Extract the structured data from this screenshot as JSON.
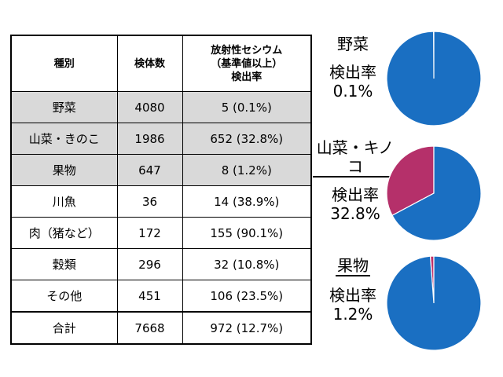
{
  "table": {
    "headers": {
      "category": "種別",
      "count": "検体数",
      "rate_line1": "放射性セシウム",
      "rate_line2": "（基準値以上）",
      "rate_line3": "検出率"
    },
    "rows": [
      {
        "category": "野菜",
        "count": "4080",
        "result": "5 (0.1%)",
        "shaded": true
      },
      {
        "category": "山菜・きのこ",
        "count": "1986",
        "result": "652 (32.8%)",
        "shaded": true
      },
      {
        "category": "果物",
        "count": "647",
        "result": "8 (1.2%)",
        "shaded": true
      },
      {
        "category": "川魚",
        "count": "36",
        "result": "14 (38.9%)",
        "shaded": false
      },
      {
        "category": "肉（猪など）",
        "count": "172",
        "result": "155 (90.1%)",
        "shaded": false
      },
      {
        "category": "穀類",
        "count": "296",
        "result": "32 (10.8%)",
        "shaded": false
      },
      {
        "category": "その他",
        "count": "451",
        "result": "106 (23.5%)",
        "shaded": false
      }
    ],
    "total": {
      "category": "合計",
      "count": "7668",
      "result": "972 (12.7%)"
    }
  },
  "chart_data": [
    {
      "type": "pie",
      "title": "野菜",
      "rate_label": "検出率",
      "rate_text": "0.1%",
      "slices": [
        {
          "value": 0.1,
          "color": "#c0306a"
        },
        {
          "value": 99.9,
          "color": "#1a6fc2"
        }
      ]
    },
    {
      "type": "pie",
      "title": "山菜・キノコ",
      "rate_label": "検出率",
      "rate_text": "32.8%",
      "slices": [
        {
          "value": 32.8,
          "color": "#b5306a"
        },
        {
          "value": 67.2,
          "color": "#1a6fc2"
        }
      ]
    },
    {
      "type": "pie",
      "title": "果物",
      "rate_label": "検出率",
      "rate_text": "1.2%",
      "slices": [
        {
          "value": 1.2,
          "color": "#c0306a"
        },
        {
          "value": 98.8,
          "color": "#1a6fc2"
        }
      ]
    }
  ]
}
